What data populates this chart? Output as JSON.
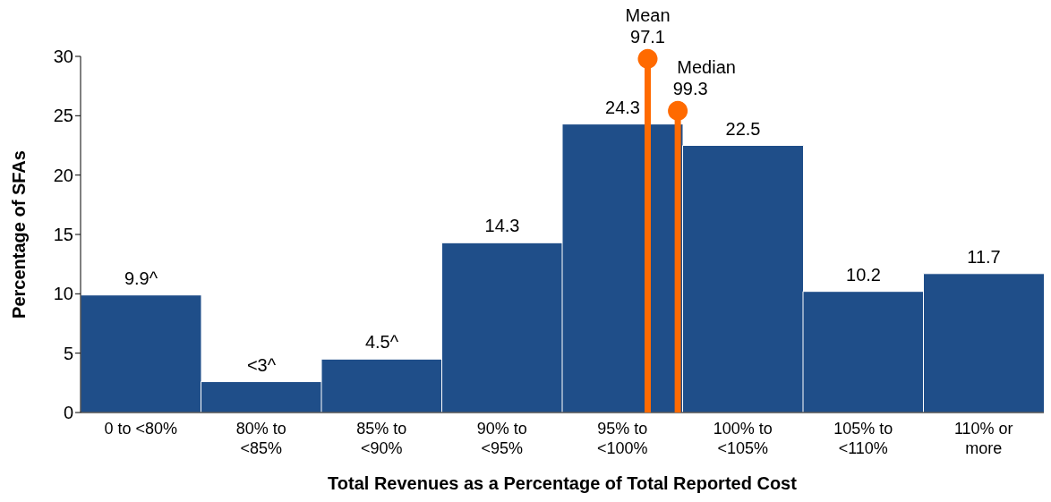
{
  "chart_data": {
    "type": "bar",
    "xlabel": "Total Revenues as a Percentage of Total Reported Cost",
    "ylabel": "Percentage of SFAs",
    "categories": [
      "0 to <80%",
      "80% to <85%",
      "85% to <90%",
      "90% to <95%",
      "95% to <100%",
      "100% to <105%",
      "105% to <110%",
      "110% or more"
    ],
    "values": [
      9.9,
      2.6,
      4.5,
      14.3,
      24.3,
      22.5,
      10.2,
      11.7
    ],
    "value_labels": [
      "9.9^",
      "<3^",
      "4.5^",
      "14.3",
      "24.3",
      "22.5",
      "10.2",
      "11.7"
    ],
    "color": "#1f4e89",
    "ylim": [
      0,
      30
    ],
    "yticks": [
      0,
      5,
      10,
      15,
      20,
      25,
      30
    ],
    "grid": false,
    "legend": false,
    "annotations": [
      "Mean 97.1",
      "Median 99.3"
    ]
  }
}
